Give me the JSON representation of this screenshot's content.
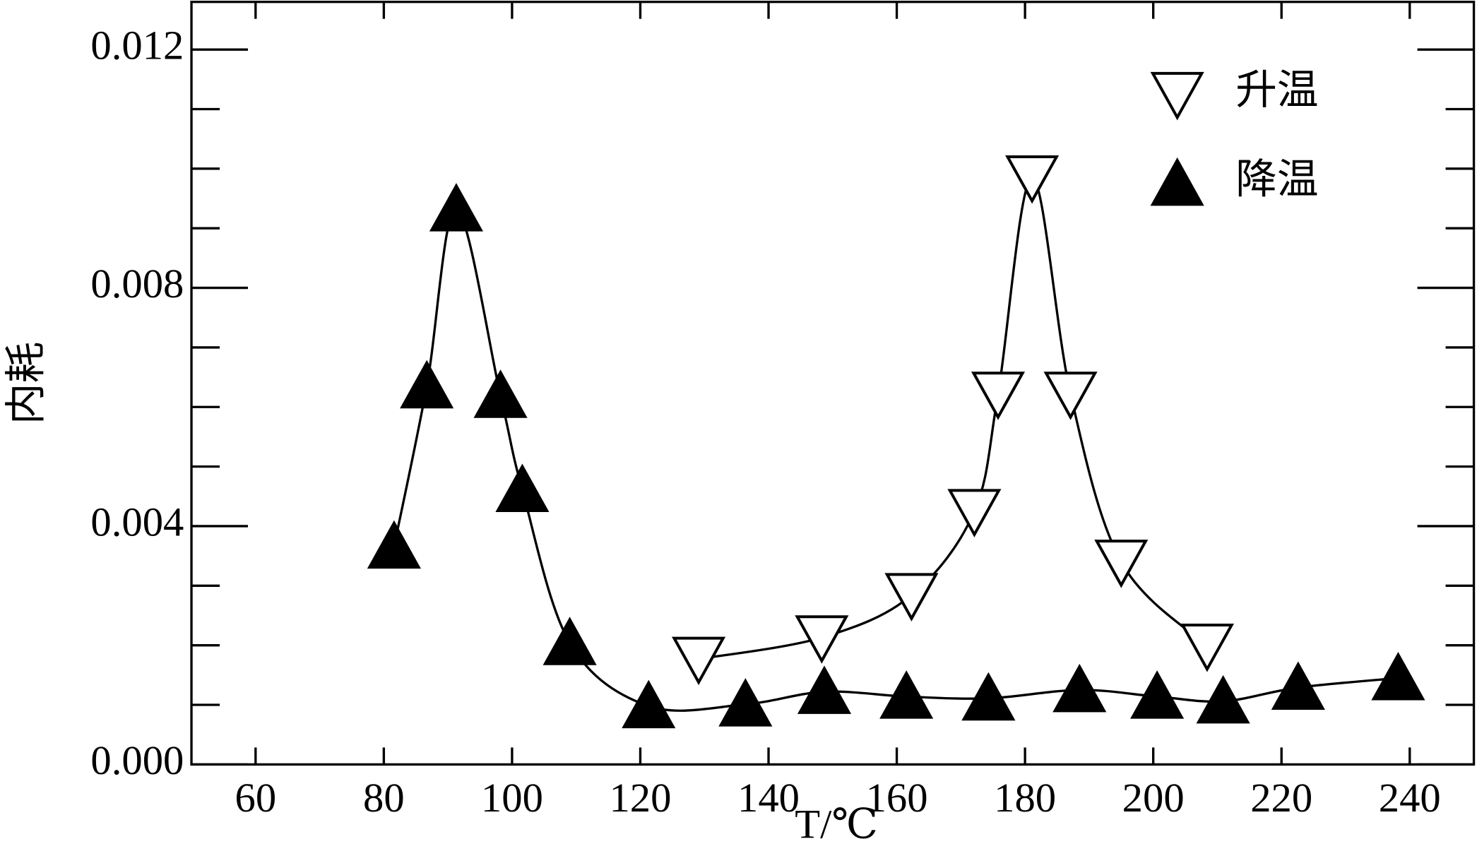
{
  "chart_data": {
    "type": "scatter",
    "x_label": "T/℃",
    "y_label": "内耗",
    "xlim": [
      50,
      250
    ],
    "ylim": [
      0,
      0.0128
    ],
    "xticks": [
      60,
      80,
      100,
      120,
      140,
      160,
      180,
      200,
      220,
      240
    ],
    "yticks": [
      {
        "value": 0,
        "label": "0.000"
      },
      {
        "value": 0.004,
        "label": "0.004"
      },
      {
        "value": 0.008,
        "label": "0.008"
      },
      {
        "value": 0.012,
        "label": "0.012"
      }
    ],
    "legend": "upper right",
    "series": [
      {
        "name": "升温",
        "color": "#000000",
        "marker": "triangle-down-open",
        "x": [
          129.1,
          148.3,
          162.3,
          172.1,
          175.8,
          181.1,
          187.1,
          195.0,
          208.4
        ],
        "values": [
          0.00177,
          0.00213,
          0.00284,
          0.00425,
          0.00622,
          0.00985,
          0.00622,
          0.0034,
          0.00199
        ]
      },
      {
        "name": "降温",
        "color": "#000000",
        "marker": "triangle-up-filled",
        "x": [
          81.6,
          86.7,
          91.3,
          98.2,
          101.6,
          109.0,
          121.3,
          136.4,
          148.7,
          161.5,
          174.3,
          188.5,
          200.6,
          210.9,
          222.6,
          238.2
        ],
        "values": [
          0.00366,
          0.00635,
          0.00932,
          0.00619,
          0.00461,
          0.00204,
          0.00098,
          0.00101,
          0.00122,
          0.00114,
          0.00111,
          0.00125,
          0.00114,
          0.00106,
          0.00129,
          0.00145
        ]
      }
    ]
  }
}
